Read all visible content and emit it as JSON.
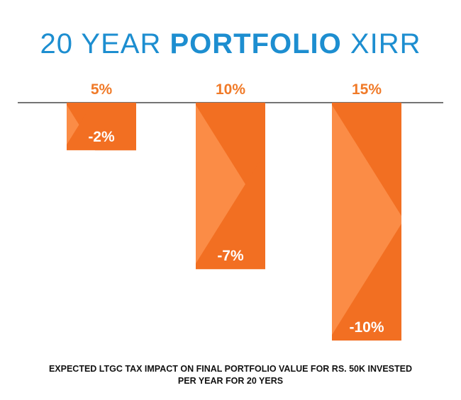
{
  "title": {
    "part1": "20 YEAR ",
    "part2": "PORTFOLIO",
    "part3": " XIRR"
  },
  "caption": {
    "line1": "EXPECTED LTGC TAX IMPACT ON FINAL PORTFOLIO VALUE FOR RS. 50K INVESTED",
    "line2": "PER YEAR FOR 20 YERS"
  },
  "colors": {
    "title": "#1d8ed0",
    "category_label": "#f07a28",
    "bar_light": "#fb8c46",
    "bar_dark": "#f26f22",
    "axis": "#222222",
    "value_label": "#ffffff"
  },
  "chart_data": {
    "type": "bar",
    "categories": [
      "5%",
      "10%",
      "15%"
    ],
    "values": [
      -2,
      -7,
      -10
    ],
    "value_labels": [
      "-2%",
      "-7%",
      "-10%"
    ],
    "ylim": [
      -11,
      0
    ],
    "grid": false,
    "legend": "none"
  }
}
